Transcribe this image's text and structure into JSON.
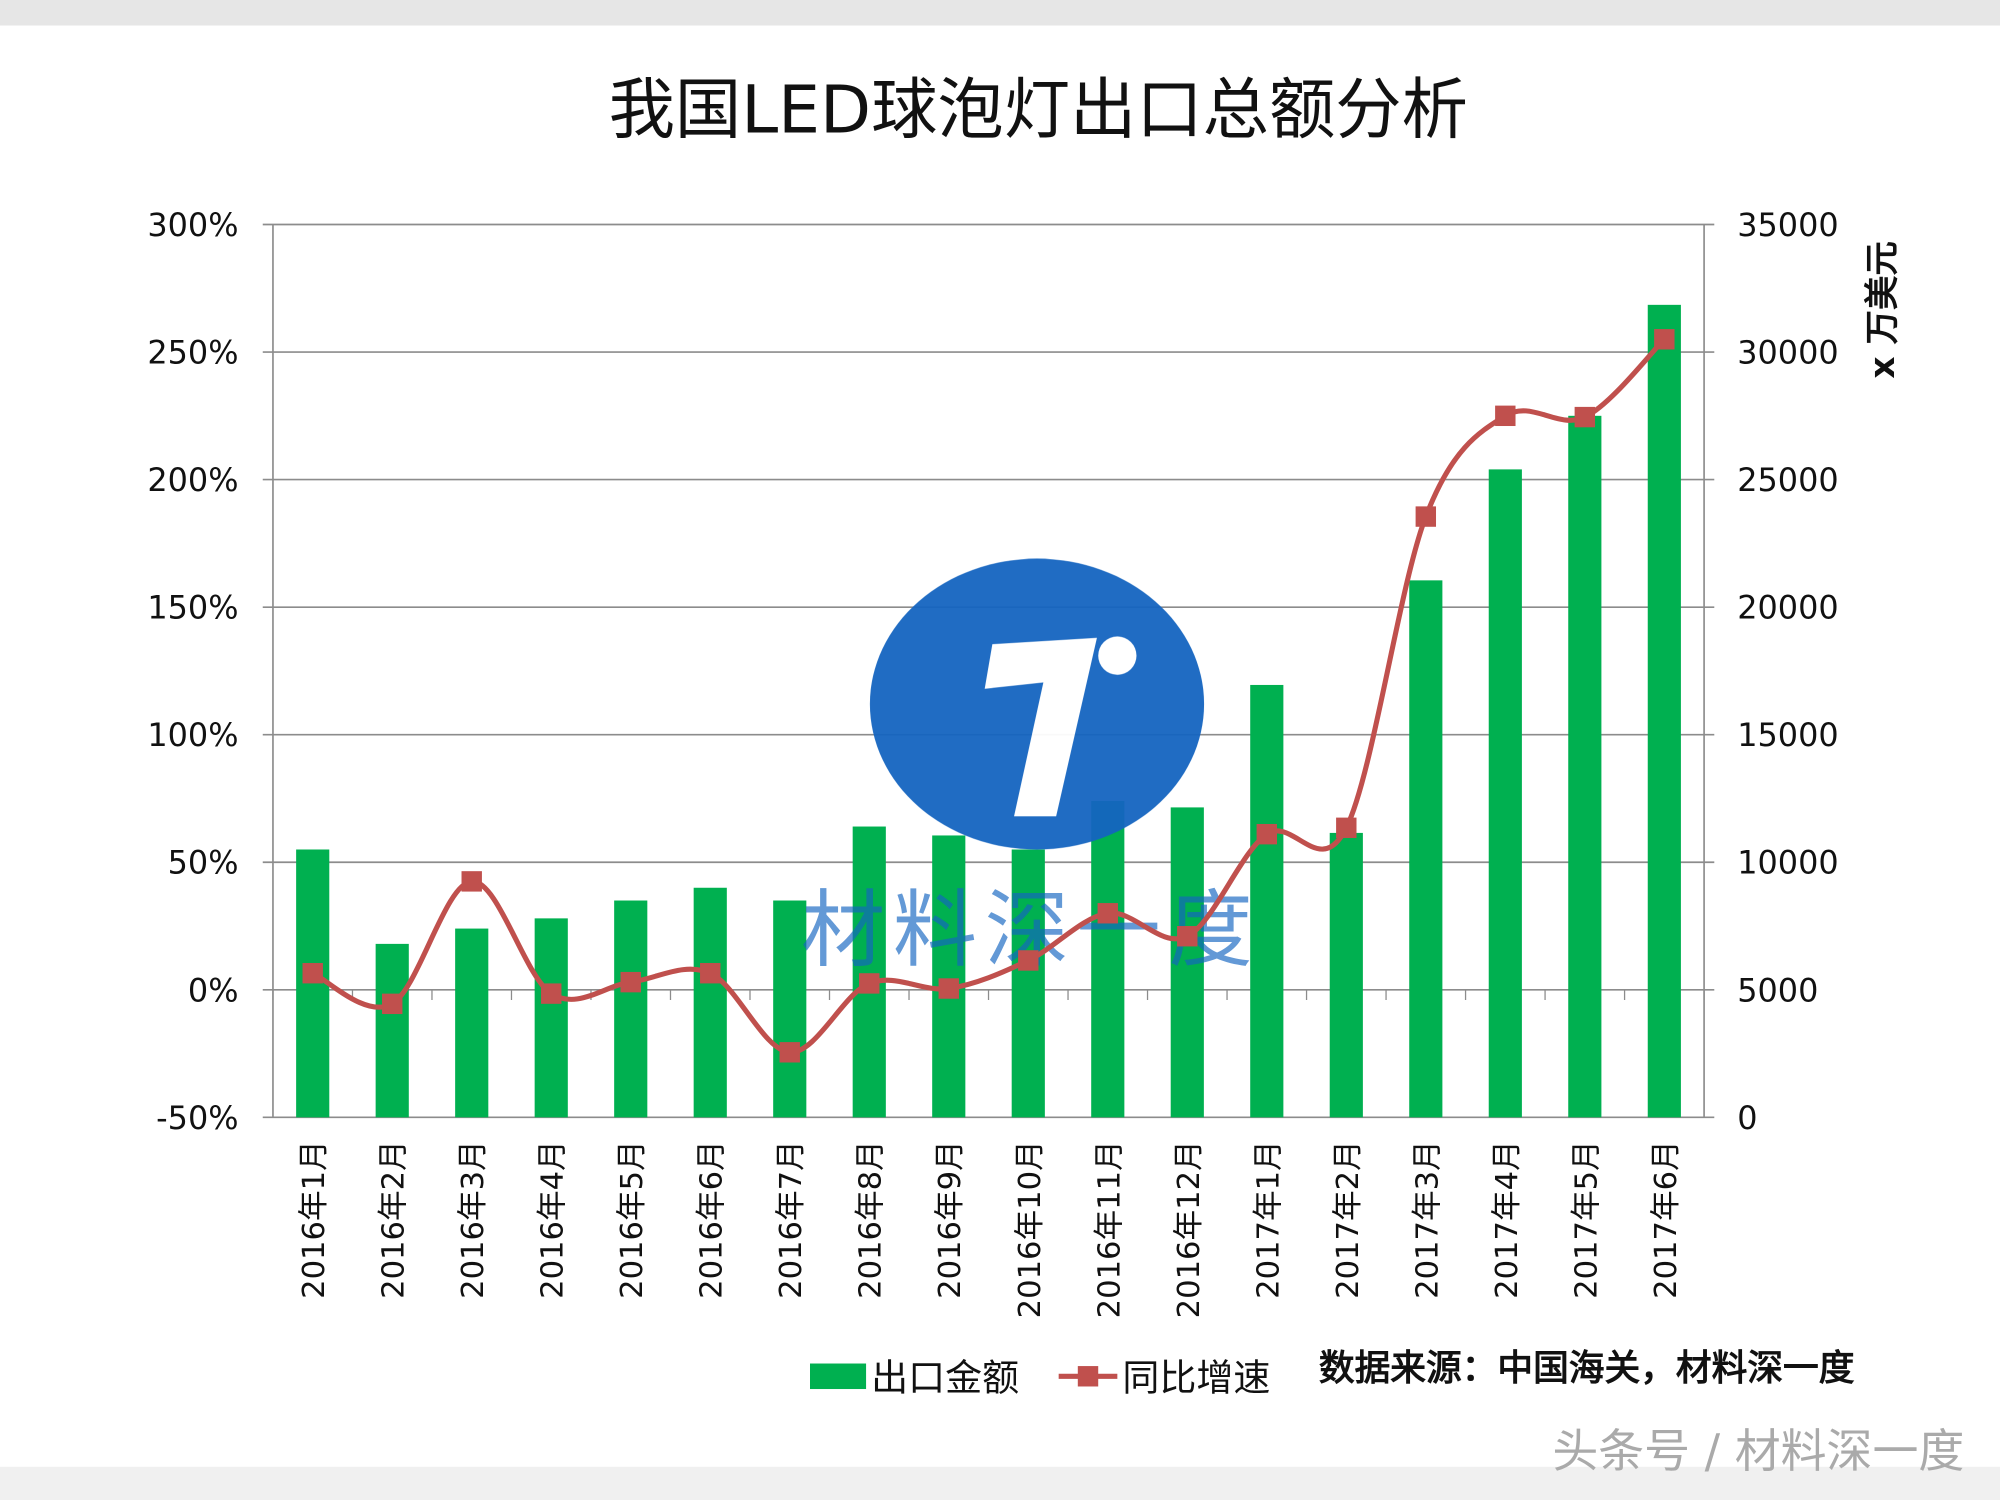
{
  "chart_data": {
    "type": "bar+line",
    "title": "我国LED球泡灯出口总额分析",
    "categories": [
      "2016年1月",
      "2016年2月",
      "2016年3月",
      "2016年4月",
      "2016年5月",
      "2016年6月",
      "2016年7月",
      "2016年8月",
      "2016年9月",
      "2016年10月",
      "2016年11月",
      "2016年12月",
      "2017年1月",
      "2017年2月",
      "2017年3月",
      "2017年4月",
      "2017年5月",
      "2017年6月"
    ],
    "series": [
      {
        "name": "出口金额",
        "type": "bar",
        "axis": "right",
        "color": "#00B050",
        "values": [
          10500,
          6800,
          7400,
          7800,
          8500,
          9000,
          8500,
          11400,
          11050,
          10500,
          12400,
          12150,
          16950,
          11150,
          21050,
          25400,
          27500,
          31850
        ]
      },
      {
        "name": "同比增速",
        "type": "line",
        "axis": "left",
        "color": "#C0504D",
        "marker": "square",
        "smooth": true,
        "values": [
          6.5,
          -5.5,
          42.5,
          -1.5,
          3,
          6.5,
          -24.5,
          2.5,
          0.5,
          11.5,
          30,
          21,
          61,
          63.5,
          185.5,
          225,
          224.5,
          255
        ]
      }
    ],
    "left_axis": {
      "ylim": [
        -50,
        300
      ],
      "ticks": [
        "-50%",
        "0%",
        "50%",
        "100%",
        "150%",
        "200%",
        "250%",
        "300%"
      ],
      "tick_values": [
        -50,
        0,
        50,
        100,
        150,
        200,
        250,
        300
      ]
    },
    "right_axis": {
      "label": "x 万美元",
      "ylim": [
        0,
        35000
      ],
      "ticks": [
        "0",
        "5000",
        "10000",
        "15000",
        "20000",
        "25000",
        "30000",
        "35000"
      ],
      "tick_values": [
        0,
        5000,
        10000,
        15000,
        20000,
        25000,
        30000,
        35000
      ]
    },
    "grid": true,
    "legend_position": "bottom",
    "source_note": "数据来源：中国海关，材料深一度"
  },
  "watermark": {
    "logo_text": "材料深一度",
    "logo_glyph": "1",
    "color": "#1565C0"
  },
  "footer": {
    "text": "头条号 / 材料深一度"
  }
}
